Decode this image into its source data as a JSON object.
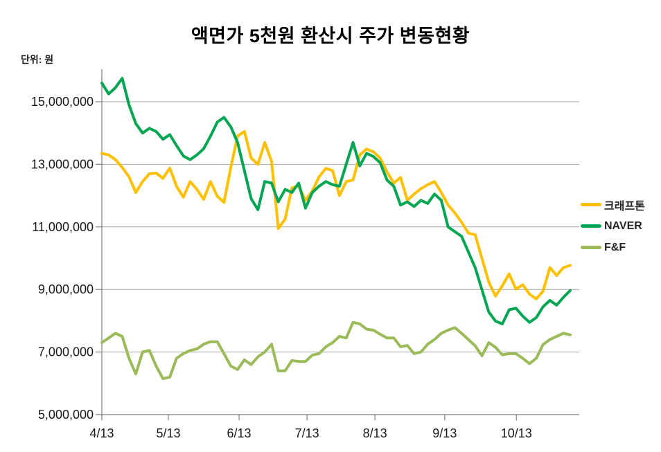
{
  "title": "액면가 5천원 환산시 주가 변동현황",
  "unit_label": "단위: 원",
  "chart_data": {
    "type": "line",
    "title": "액면가 5천원 환산시 주가 변동현황",
    "ylabel": "단위: 원",
    "unit": "원",
    "ylim": [
      5000000,
      15000000
    ],
    "grid": "horizontal",
    "legend_position": "right",
    "y_ticks": [
      {
        "value": 5000000,
        "label": "5,000,000"
      },
      {
        "value": 7000000,
        "label": "7,000,000"
      },
      {
        "value": 9000000,
        "label": "9,000,000"
      },
      {
        "value": 11000000,
        "label": "11,000,000"
      },
      {
        "value": 13000000,
        "label": "13,000,000"
      },
      {
        "value": 15000000,
        "label": "15,000,000"
      }
    ],
    "x_ticks": [
      {
        "label": "4/13",
        "pos": 0
      },
      {
        "label": "5/13",
        "pos": 0.142
      },
      {
        "label": "6/13",
        "pos": 0.293
      },
      {
        "label": "7/13",
        "pos": 0.438
      },
      {
        "label": "8/13",
        "pos": 0.583
      },
      {
        "label": "9/13",
        "pos": 0.732
      },
      {
        "label": "10/13",
        "pos": 0.885
      }
    ],
    "series": [
      {
        "name": "크래프톤",
        "id": "krafton",
        "color": "#FFC000",
        "values": [
          13350000,
          13300000,
          13150000,
          12900000,
          12600000,
          12100000,
          12450000,
          12700000,
          12720000,
          12550000,
          12880000,
          12300000,
          11950000,
          12450000,
          12200000,
          11880000,
          12450000,
          11980000,
          11780000,
          12900000,
          13900000,
          14050000,
          13200000,
          13000000,
          13700000,
          13100000,
          10950000,
          11250000,
          12250000,
          12300000,
          11850000,
          12150000,
          12600000,
          12870000,
          12800000,
          12000000,
          12450000,
          12500000,
          13300000,
          13490000,
          13400000,
          13200000,
          12760000,
          12400000,
          12580000,
          11850000,
          12050000,
          12220000,
          12350000,
          12450000,
          12100000,
          11700000,
          11450000,
          11150000,
          10800000,
          10750000,
          9990000,
          9240000,
          8790000,
          9120000,
          9500000,
          9010000,
          9150000,
          8850000,
          8700000,
          8950000,
          9700000,
          9450000,
          9700000,
          9770000
        ]
      },
      {
        "name": "NAVER",
        "id": "naver",
        "color": "#00A651",
        "values": [
          15600000,
          15250000,
          15450000,
          15750000,
          14900000,
          14300000,
          14000000,
          14150000,
          14050000,
          13800000,
          13950000,
          13600000,
          13270000,
          13150000,
          13300000,
          13500000,
          13900000,
          14350000,
          14500000,
          14200000,
          13700000,
          12800000,
          11900000,
          11550000,
          12450000,
          12400000,
          11800000,
          12200000,
          12100000,
          12400000,
          11600000,
          12100000,
          12300000,
          12450000,
          12350000,
          12300000,
          13000000,
          13700000,
          12950000,
          13350000,
          13250000,
          13050000,
          12500000,
          12300000,
          11700000,
          11800000,
          11650000,
          11850000,
          11750000,
          12050000,
          11850000,
          11000000,
          10850000,
          10700000,
          10200000,
          9700000,
          8990000,
          8280000,
          7990000,
          7900000,
          8350000,
          8400000,
          8150000,
          7950000,
          8100000,
          8450000,
          8650000,
          8500000,
          8750000,
          8970000
        ]
      },
      {
        "name": "F&F",
        "id": "ff",
        "color": "#9BBB59",
        "values": [
          7300000,
          7450000,
          7600000,
          7500000,
          6800000,
          6300000,
          7000000,
          7050000,
          6550000,
          6150000,
          6200000,
          6800000,
          6950000,
          7050000,
          7100000,
          7250000,
          7330000,
          7330000,
          6950000,
          6550000,
          6440000,
          6750000,
          6600000,
          6850000,
          7000000,
          7250000,
          6400000,
          6400000,
          6730000,
          6700000,
          6700000,
          6900000,
          6950000,
          7170000,
          7300000,
          7500000,
          7450000,
          7950000,
          7900000,
          7730000,
          7700000,
          7570000,
          7450000,
          7450000,
          7170000,
          7210000,
          6950000,
          7000000,
          7250000,
          7400000,
          7600000,
          7700000,
          7780000,
          7600000,
          7400000,
          7200000,
          6880000,
          7300000,
          7150000,
          6910000,
          6950000,
          6950000,
          6800000,
          6630000,
          6800000,
          7240000,
          7400000,
          7500000,
          7600000,
          7550000
        ]
      }
    ]
  }
}
